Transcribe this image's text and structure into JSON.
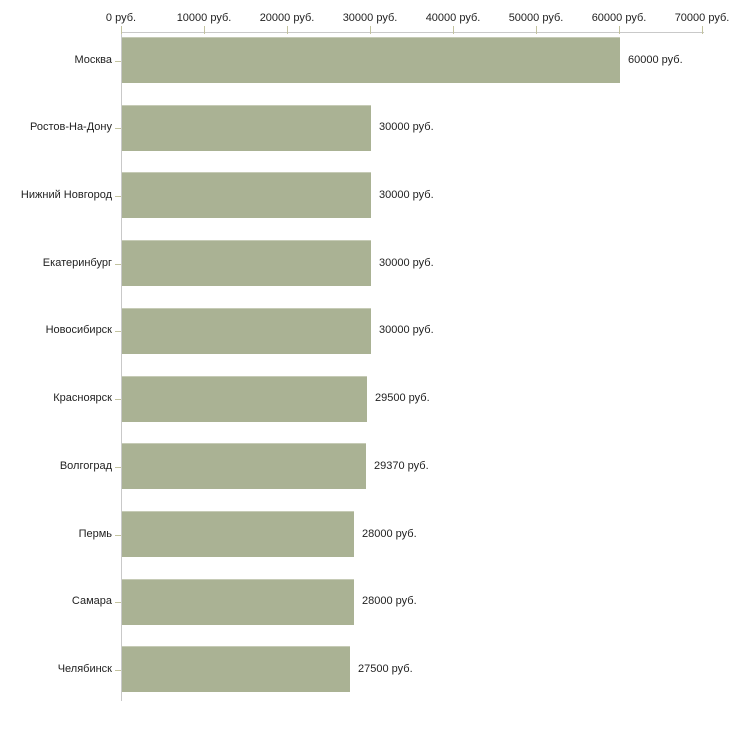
{
  "chart_data": {
    "type": "bar",
    "orientation": "horizontal",
    "categories": [
      "Москва",
      "Ростов-На-Дону",
      "Нижний Новгород",
      "Екатеринбург",
      "Новосибирск",
      "Красноярск",
      "Волгоград",
      "Пермь",
      "Самара",
      "Челябинск"
    ],
    "values": [
      60000,
      30000,
      30000,
      30000,
      30000,
      29500,
      29370,
      28000,
      28000,
      27500
    ],
    "value_labels": [
      "60000 руб.",
      "30000 руб.",
      "30000 руб.",
      "30000 руб.",
      "30000 руб.",
      "29500 руб.",
      "29370 руб.",
      "28000 руб.",
      "28000 руб.",
      "27500 руб."
    ],
    "x_axis": {
      "position": "top",
      "min": 0,
      "max": 70000,
      "tick_values": [
        0,
        10000,
        20000,
        30000,
        40000,
        50000,
        60000,
        70000
      ],
      "tick_labels": [
        "0 руб.",
        "10000 руб.",
        "20000 руб.",
        "30000 руб.",
        "40000 руб.",
        "50000 руб.",
        "60000 руб.",
        "70000 руб."
      ]
    },
    "grid": false,
    "legend": false,
    "colors": {
      "bar_fill": "#aab294",
      "bar_edge": "#c6cbb6",
      "axis_line": "#c9c9c9",
      "tick_mark": "#c3c39f",
      "text": "#1f1f1f"
    }
  }
}
